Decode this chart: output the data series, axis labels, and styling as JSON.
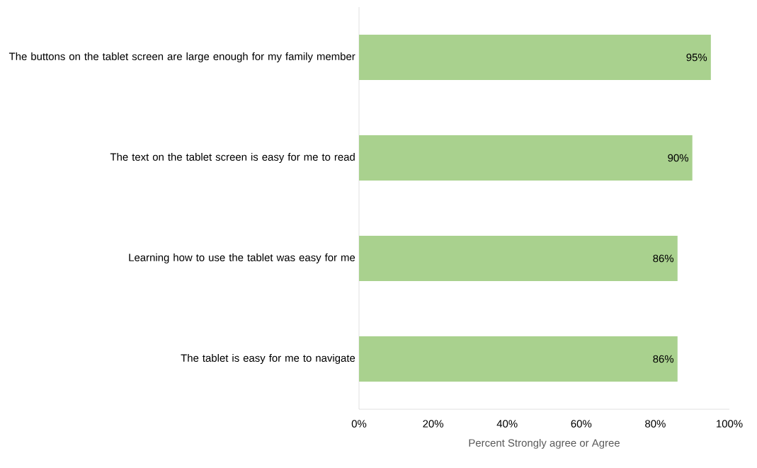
{
  "chart_data": {
    "type": "bar",
    "orientation": "horizontal",
    "categories": [
      "The buttons on the tablet screen are large enough for my family member",
      "The text on the tablet screen is easy for me to read",
      "Learning how to use the tablet was easy for me",
      "The tablet is easy for me to navigate"
    ],
    "values": [
      95,
      90,
      86,
      86
    ],
    "value_labels": [
      "95%",
      "90%",
      "86%",
      "86%"
    ],
    "color": "#a9d18e",
    "xlabel": "Percent Strongly agree or Agree",
    "xlim": [
      0,
      100
    ],
    "xticks": [
      {
        "value": 0,
        "label": "0%"
      },
      {
        "value": 20,
        "label": "20%"
      },
      {
        "value": 40,
        "label": "40%"
      },
      {
        "value": 60,
        "label": "60%"
      },
      {
        "value": 80,
        "label": "80%"
      },
      {
        "value": 100,
        "label": "100%"
      }
    ]
  }
}
